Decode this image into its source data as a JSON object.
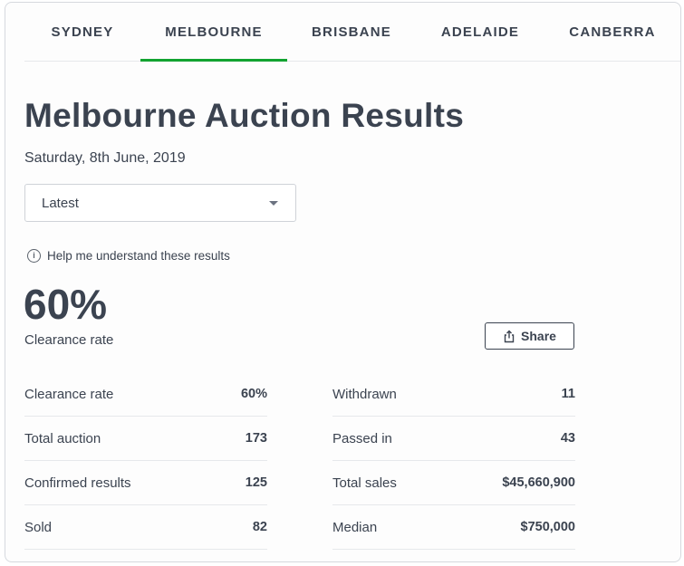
{
  "tabs": [
    {
      "label": "SYDNEY",
      "active": false
    },
    {
      "label": "MELBOURNE",
      "active": true
    },
    {
      "label": "BRISBANE",
      "active": false
    },
    {
      "label": "ADELAIDE",
      "active": false
    },
    {
      "label": "CANBERRA",
      "active": false
    }
  ],
  "accent_color": "#12a331",
  "page": {
    "title": "Melbourne Auction Results",
    "date": "Saturday, 8th June, 2019"
  },
  "filter": {
    "selected": "Latest",
    "icon": "chevron-down-icon"
  },
  "help": {
    "label": "Help me understand these results",
    "icon": "info-icon"
  },
  "headline": {
    "value": "60%",
    "label": "Clearance rate"
  },
  "share": {
    "label": "Share",
    "icon": "share-icon"
  },
  "stats_left": [
    {
      "label": "Clearance rate",
      "value": "60%"
    },
    {
      "label": "Total auction",
      "value": "173"
    },
    {
      "label": "Confirmed results",
      "value": "125"
    },
    {
      "label": "Sold",
      "value": "82"
    }
  ],
  "stats_right": [
    {
      "label": "Withdrawn",
      "value": "11"
    },
    {
      "label": "Passed in",
      "value": "43"
    },
    {
      "label": "Total sales",
      "value": "$45,660,900"
    },
    {
      "label": "Median",
      "value": "$750,000"
    }
  ]
}
